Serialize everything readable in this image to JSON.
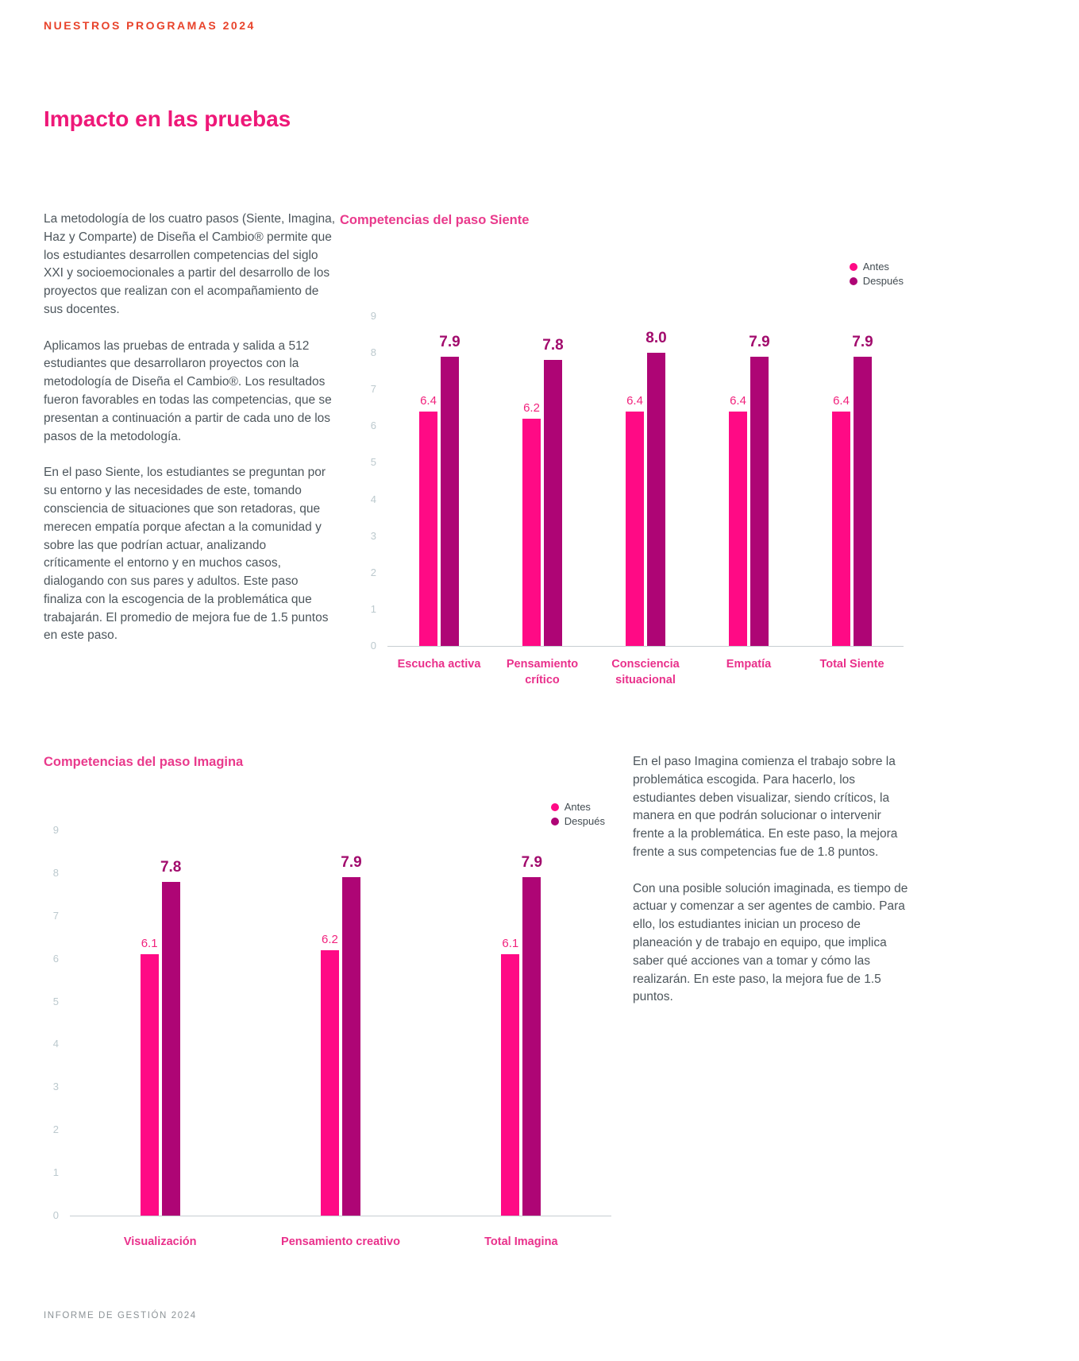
{
  "page": {
    "eyebrow": "NUESTROS PROGRAMAS 2024",
    "title": "Impacto en las pruebas",
    "footer": "INFORME DE GESTIÓN 2024"
  },
  "intro_paragraphs": [
    "La metodología de los cuatro pasos (Siente, Imagina, Haz y Comparte) de Diseña el Cambio® permite que los estudiantes desarrollen competencias del siglo XXI y socioemocionales a partir del desarrollo de los proyectos que realizan con el acompañamiento de sus docentes.",
    "Aplicamos las pruebas de entrada y salida a 512 estudiantes que desarrollaron proyectos con la metodología de Diseña el Cambio®. Los resultados fueron favorables en todas las competencias, que se presentan a continuación a partir de cada uno de los pasos de la metodología.",
    "En el paso Siente, los estudiantes se preguntan por su entorno y las necesidades de este, tomando consciencia de situaciones que son retadoras, que merecen empatía porque afectan a la comunidad y sobre las que podrían actuar, analizando críticamente el entorno y en muchos casos, dialogando con sus pares y adultos. Este paso finaliza con la escogencia de la problemática que trabajarán. El promedio de mejora fue de 1.5 puntos en este paso."
  ],
  "imagina_paragraphs": [
    "En el paso Imagina comienza el trabajo sobre la problemática escogida. Para hacerlo, los estudiantes deben visualizar, siendo críticos, la manera en que podrán solucionar o intervenir frente a la problemática. En este paso, la mejora frente a sus competencias fue de 1.8 puntos.",
    "Con una posible solución imaginada, es tiempo de actuar y comenzar a ser agentes de cambio. Para ello, los estudiantes inician un proceso de planeación y de trabajo en equipo, que implica saber qué acciones van a tomar y cómo las realizarán. En este paso, la mejora fue de 1.5 puntos."
  ],
  "colors": {
    "accent_red": "#E8432B",
    "accent_pink": "#EE1878",
    "antes_pink": "#FF0A85",
    "despues_magenta": "#AE0575",
    "body_text": "#4D565C",
    "axis_tick": "#BCC9CE"
  },
  "chart_data": [
    {
      "type": "bar",
      "title": "Competencias del paso Siente",
      "categories": [
        "Escucha activa",
        "Pensamiento crítico",
        "Consciencia situacional",
        "Empatía",
        "Total Siente"
      ],
      "series": [
        {
          "name": "Antes",
          "values": [
            6.4,
            6.2,
            6.4,
            6.4,
            6.4
          ],
          "color": "#FF0A85",
          "label_color": "#F1227D"
        },
        {
          "name": "Después",
          "values": [
            7.9,
            7.8,
            8.0,
            7.9,
            7.9
          ],
          "color": "#AE0575",
          "label_color": "#A20B6D"
        }
      ],
      "ylim": [
        0,
        9
      ],
      "yticks": [
        0,
        1,
        2,
        3,
        4,
        5,
        6,
        7,
        8,
        9
      ],
      "ylabel": "",
      "xlabel": "",
      "grid": false,
      "legend_position": "top-right"
    },
    {
      "type": "bar",
      "title": "Competencias del paso Imagina",
      "categories": [
        "Visualización",
        "Pensamiento creativo",
        "Total Imagina"
      ],
      "series": [
        {
          "name": "Antes",
          "values": [
            6.1,
            6.2,
            6.1
          ],
          "color": "#FF0A85",
          "label_color": "#F1227D"
        },
        {
          "name": "Después",
          "values": [
            7.8,
            7.9,
            7.9
          ],
          "color": "#AE0575",
          "label_color": "#A20B6D"
        }
      ],
      "ylim": [
        0,
        9
      ],
      "yticks": [
        0,
        1,
        2,
        3,
        4,
        5,
        6,
        7,
        8,
        9
      ],
      "ylabel": "",
      "xlabel": "",
      "grid": false,
      "legend_position": "top-right"
    }
  ]
}
